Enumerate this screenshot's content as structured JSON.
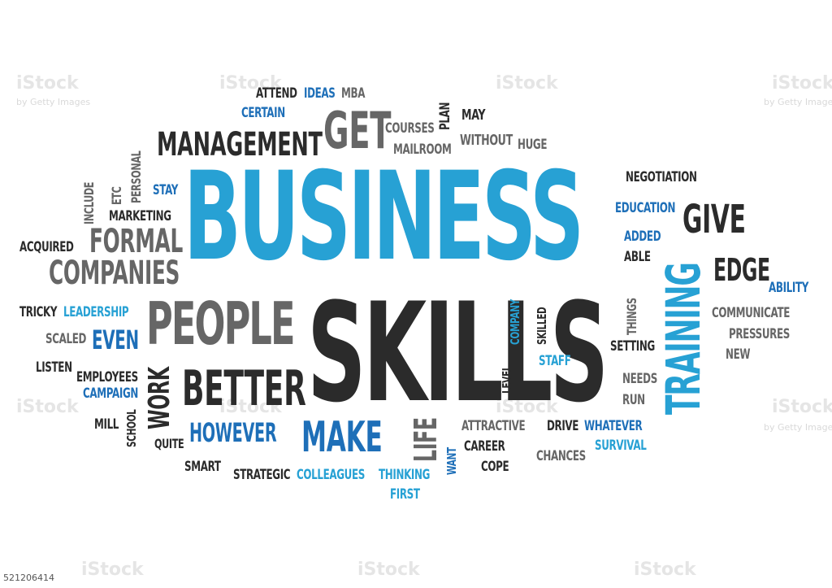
{
  "words": {
    "business": "BUSINESS",
    "skills": "SKILLS",
    "people": "PEOPLE",
    "training": "TRAINING",
    "management": "MANAGEMENT",
    "get": "GET",
    "better": "BETTER",
    "make": "MAKE",
    "however": "HOWEVER",
    "companies": "COMPANIES",
    "formal": "FORMAL",
    "give": "GIVE",
    "edge": "EDGE",
    "work": "WORK",
    "even": "EVEN",
    "life": "LIFE",
    "attend": "ATTEND",
    "ideas": "IDEAS",
    "mba": "MBA",
    "certain": "CERTAIN",
    "courses": "COURSES",
    "mailroom": "MAILROOM",
    "plan": "PLAN",
    "may": "MAY",
    "without": "WITHOUT",
    "huge": "HUGE",
    "personal": "PERSONAL",
    "etc": "ETC",
    "include": "INCLUDE",
    "stay": "STAY",
    "marketing": "MARKETING",
    "acquired": "ACQUIRED",
    "negotiation": "NEGOTIATION",
    "education": "EDUCATION",
    "added": "ADDED",
    "able": "ABLE",
    "ability": "ABILITY",
    "communicate": "COMMUNICATE",
    "pressures": "PRESSURES",
    "new": "NEW",
    "things": "THINGS",
    "setting": "SETTING",
    "needs": "NEEDS",
    "run": "RUN",
    "tricky": "TRICKY",
    "leadership": "LEADERSHIP",
    "scaled": "SCALED",
    "listen": "LISTEN",
    "employees": "EMPLOYEES",
    "campaign": "CAMPAIGN",
    "mill": "MILL",
    "school": "SCHOOL",
    "quite": "QUITE",
    "smart": "SMART",
    "strategic": "STRATEGIC",
    "colleagues": "COLLEAGUES",
    "thinking": "THINKING",
    "first": "FIRST",
    "company": "COMPANY",
    "skilled": "SKILLED",
    "level": "LEVEL",
    "staff": "STAFF",
    "want": "WANT",
    "attractive": "ATTRACTIVE",
    "career": "CAREER",
    "cope": "COPE",
    "drive": "DRIVE",
    "whatever": "WHATEVER",
    "survival": "SURVIVAL",
    "chances": "CHANCES"
  },
  "watermark": {
    "brand": "iStock",
    "sub": "by Getty Images"
  },
  "stock_id": "521206414",
  "colors": {
    "dark": "#2b2b2b",
    "gray": "#666666",
    "blue": "#1e6fb8",
    "light_blue": "#27a1d4"
  }
}
